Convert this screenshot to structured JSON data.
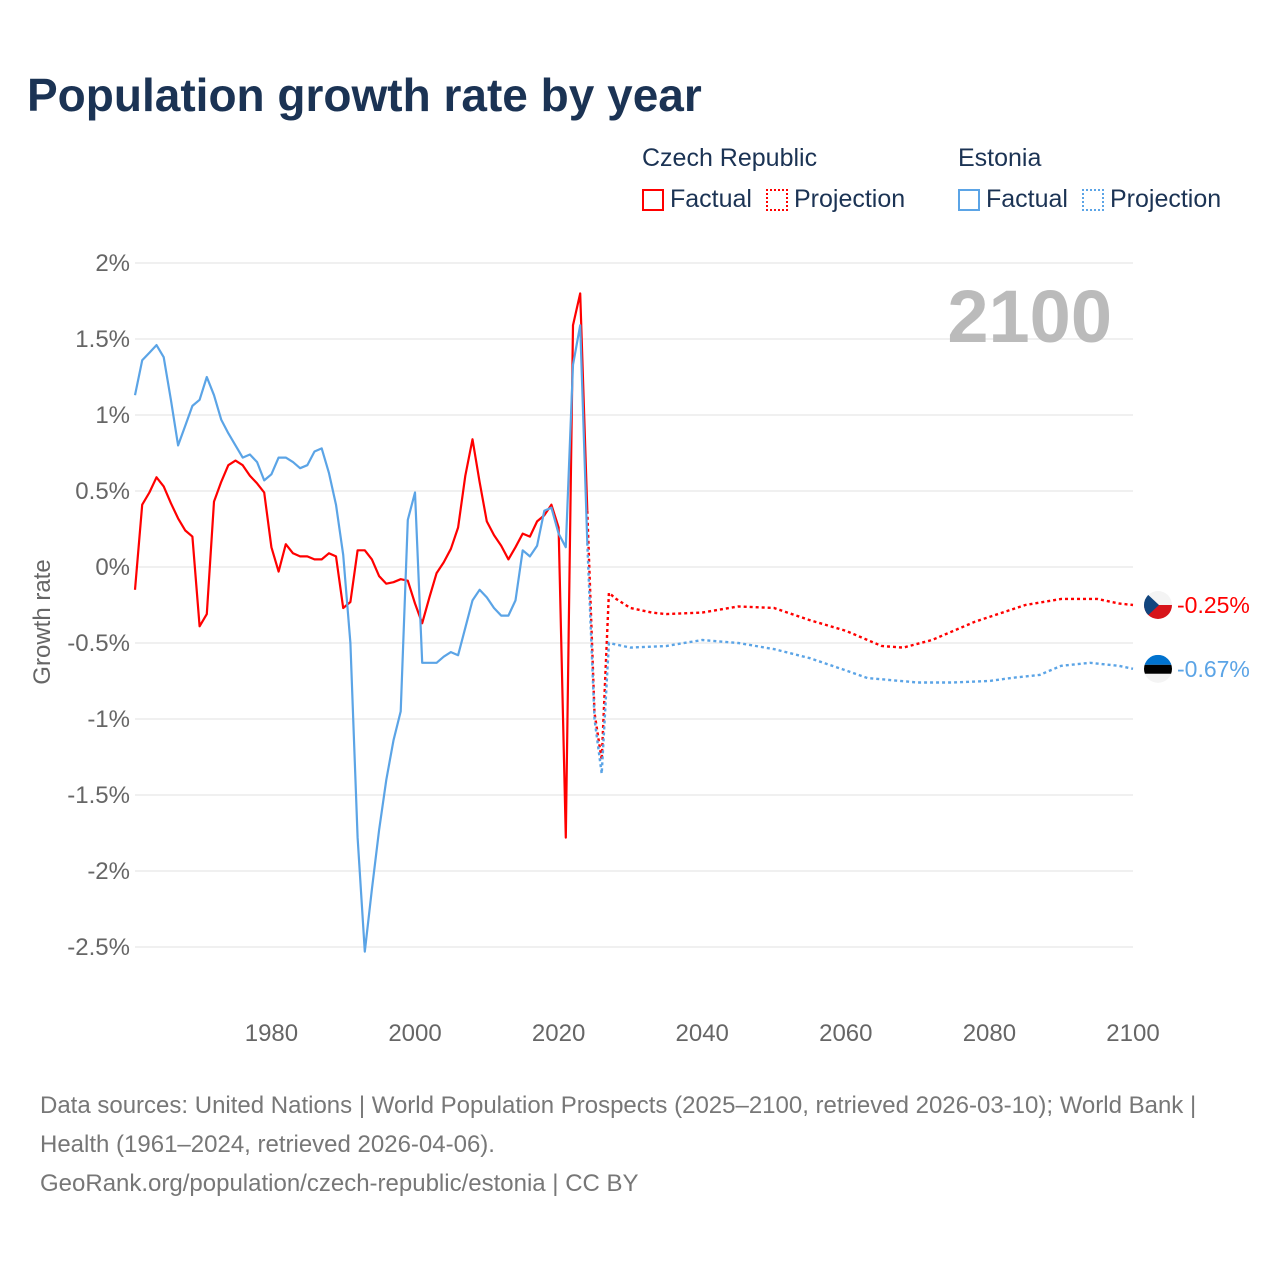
{
  "title": "Population growth rate by year",
  "legend": [
    {
      "country": "Czech Republic",
      "factual": "Factual",
      "projection": "Projection",
      "color": "#ff0000"
    },
    {
      "country": "Estonia",
      "factual": "Factual",
      "projection": "Projection",
      "color": "#5ba4e6"
    }
  ],
  "year_display": "2100",
  "footer": {
    "sources": "Data sources: United Nations | World Population Prospects (2025–2100, retrieved 2026-03-10); World Bank | Health (1961–2024, retrieved 2026-04-06).",
    "link": "GeoRank.org/population/czech-republic/estonia | CC BY"
  },
  "chart_data": {
    "type": "line",
    "title": "Population growth rate by year",
    "xlabel": "",
    "ylabel": "Growth rate",
    "xlim": [
      1961,
      2100
    ],
    "ylim": [
      -2.5,
      2
    ],
    "xticks": [
      1980,
      2000,
      2020,
      2040,
      2060,
      2080,
      2100
    ],
    "yticks": [
      2,
      1.5,
      1,
      0.5,
      0,
      -0.5,
      -1,
      -1.5,
      -2,
      -2.5
    ],
    "ytick_labels": [
      "2%",
      "1.5%",
      "1%",
      "0.5%",
      "0%",
      "-0.5%",
      "-1%",
      "-1.5%",
      "-2%",
      "-2.5%"
    ],
    "grid": true,
    "legend_position": "top-right",
    "series": [
      {
        "name": "Czech Republic",
        "flag": "czech-flag",
        "color": "#ff0000",
        "end_label": "-0.25%",
        "factual": {
          "x": [
            1961,
            1962,
            1963,
            1964,
            1965,
            1966,
            1967,
            1968,
            1969,
            1970,
            1971,
            1972,
            1973,
            1974,
            1975,
            1976,
            1977,
            1978,
            1979,
            1980,
            1981,
            1982,
            1983,
            1984,
            1985,
            1986,
            1987,
            1988,
            1989,
            1990,
            1991,
            1992,
            1993,
            1994,
            1995,
            1996,
            1997,
            1998,
            1999,
            2000,
            2001,
            2002,
            2003,
            2004,
            2005,
            2006,
            2007,
            2008,
            2009,
            2010,
            2011,
            2012,
            2013,
            2014,
            2015,
            2016,
            2017,
            2018,
            2019,
            2020,
            2021,
            2022,
            2023,
            2024
          ],
          "y": [
            -0.15,
            0.41,
            0.49,
            0.59,
            0.53,
            0.42,
            0.32,
            0.24,
            0.2,
            -0.39,
            -0.31,
            0.43,
            0.56,
            0.67,
            0.7,
            0.67,
            0.6,
            0.55,
            0.49,
            0.13,
            -0.03,
            0.15,
            0.09,
            0.07,
            0.07,
            0.05,
            0.05,
            0.09,
            0.07,
            -0.27,
            -0.23,
            0.11,
            0.11,
            0.05,
            -0.06,
            -0.11,
            -0.1,
            -0.08,
            -0.09,
            -0.24,
            -0.37,
            -0.2,
            -0.04,
            0.03,
            0.12,
            0.26,
            0.6,
            0.84,
            0.56,
            0.3,
            0.21,
            0.14,
            0.05,
            0.13,
            0.22,
            0.2,
            0.3,
            0.34,
            0.41,
            0.26,
            -1.78,
            1.59,
            1.8,
            0.37
          ]
        },
        "projection": {
          "x": [
            2024,
            2025,
            2026,
            2027,
            2028,
            2030,
            2033,
            2035,
            2040,
            2045,
            2050,
            2055,
            2060,
            2065,
            2068,
            2072,
            2078,
            2085,
            2090,
            2095,
            2098,
            2100
          ],
          "y": [
            0.37,
            -0.96,
            -1.27,
            -0.17,
            -0.21,
            -0.27,
            -0.3,
            -0.31,
            -0.3,
            -0.26,
            -0.27,
            -0.35,
            -0.42,
            -0.52,
            -0.53,
            -0.48,
            -0.36,
            -0.25,
            -0.21,
            -0.21,
            -0.24,
            -0.25
          ]
        }
      },
      {
        "name": "Estonia",
        "flag": "estonia-flag",
        "color": "#5ba4e6",
        "end_label": "-0.67%",
        "factual": {
          "x": [
            1961,
            1962,
            1963,
            1964,
            1965,
            1966,
            1967,
            1968,
            1969,
            1970,
            1971,
            1972,
            1973,
            1974,
            1975,
            1976,
            1977,
            1978,
            1979,
            1980,
            1981,
            1982,
            1983,
            1984,
            1985,
            1986,
            1987,
            1988,
            1989,
            1990,
            1991,
            1992,
            1993,
            1994,
            1995,
            1996,
            1997,
            1998,
            1999,
            2000,
            2001,
            2002,
            2003,
            2004,
            2005,
            2006,
            2007,
            2008,
            2009,
            2010,
            2011,
            2012,
            2013,
            2014,
            2015,
            2016,
            2017,
            2018,
            2019,
            2020,
            2021,
            2022,
            2023,
            2024
          ],
          "y": [
            1.13,
            1.36,
            1.41,
            1.46,
            1.38,
            1.1,
            0.8,
            0.93,
            1.06,
            1.1,
            1.25,
            1.13,
            0.97,
            0.88,
            0.8,
            0.72,
            0.74,
            0.69,
            0.57,
            0.61,
            0.72,
            0.72,
            0.69,
            0.65,
            0.67,
            0.76,
            0.78,
            0.62,
            0.41,
            0.08,
            -0.5,
            -1.78,
            -2.53,
            -2.12,
            -1.73,
            -1.4,
            -1.14,
            -0.95,
            0.31,
            0.49,
            -0.63,
            -0.63,
            -0.63,
            -0.59,
            -0.56,
            -0.58,
            -0.4,
            -0.22,
            -0.15,
            -0.2,
            -0.27,
            -0.32,
            -0.32,
            -0.22,
            0.11,
            0.07,
            0.14,
            0.37,
            0.39,
            0.22,
            0.13,
            1.33,
            1.59,
            0.16
          ]
        },
        "projection": {
          "x": [
            2024,
            2025,
            2026,
            2027,
            2030,
            2035,
            2040,
            2045,
            2050,
            2055,
            2060,
            2063,
            2070,
            2075,
            2080,
            2083,
            2087,
            2090,
            2094,
            2098,
            2100
          ],
          "y": [
            0.16,
            -1.0,
            -1.36,
            -0.5,
            -0.53,
            -0.52,
            -0.48,
            -0.5,
            -0.54,
            -0.6,
            -0.68,
            -0.73,
            -0.76,
            -0.76,
            -0.75,
            -0.73,
            -0.71,
            -0.65,
            -0.63,
            -0.65,
            -0.67
          ]
        }
      }
    ]
  }
}
